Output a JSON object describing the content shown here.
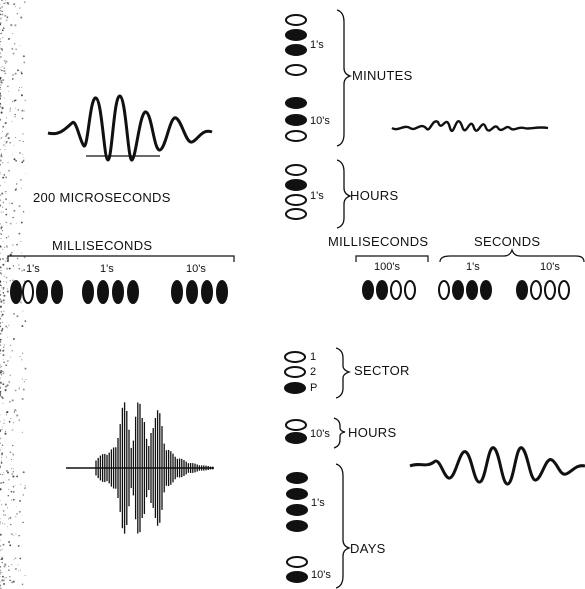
{
  "left_panel": {
    "scale_label": "200 MICROSECONDS",
    "milliseconds_title": "MILLISECONDS",
    "ms_group_labels": [
      "1's",
      "1's",
      "10's"
    ]
  },
  "upper_right": {
    "minutes_ones_label": "1's",
    "minutes_tens_label": "10's",
    "minutes_label": "MINUTES",
    "hours_ones_label": "1's",
    "hours_label": "HOURS",
    "milliseconds_label": "MILLISECONDS",
    "seconds_label": "SECONDS",
    "ms_hundreds_label": "100's",
    "sec_ones_label": "1's",
    "sec_tens_label": "10's"
  },
  "lower_right": {
    "sector_digits": [
      "1",
      "2",
      "P"
    ],
    "sector_label": "SECTOR",
    "hours_tens_label": "10's",
    "hours_label": "HOURS",
    "days_ones_label": "1's",
    "days_tens_label": "10's",
    "days_label": "DAYS"
  },
  "colors": {
    "ink": "#111111",
    "paper": "#ffffff"
  }
}
